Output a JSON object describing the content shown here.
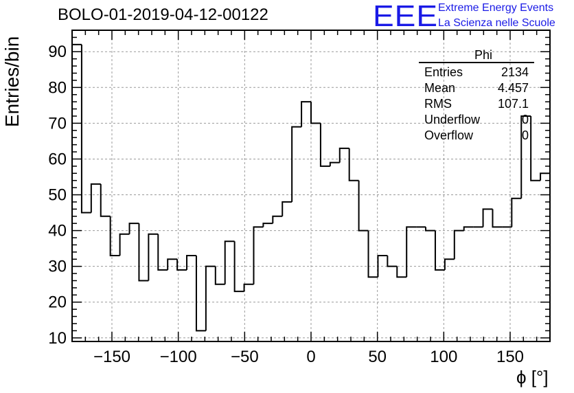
{
  "header": {
    "title": "BOLO-01-2019-04-12-00122",
    "logo_text": "EEE",
    "logo_line1": "Extreme Energy Events",
    "logo_line2": "La Scienza nelle Scuole"
  },
  "stats": {
    "title": "Phi",
    "rows": [
      {
        "label": "Entries",
        "value": "2134"
      },
      {
        "label": "Mean",
        "value": "4.457"
      },
      {
        "label": "RMS",
        "value": "107.1"
      },
      {
        "label": "Underflow",
        "value": "0"
      },
      {
        "label": "Overflow",
        "value": "0"
      }
    ]
  },
  "colors": {
    "logo": "#1a1ae6",
    "line": "#000000",
    "grid": "#999999"
  },
  "chart_data": {
    "type": "histogram",
    "title": "BOLO-01-2019-04-12-00122",
    "xlabel": "ϕ [°]",
    "ylabel": "Entries/bin",
    "xlim": [
      -180,
      180
    ],
    "ylim": [
      9,
      96
    ],
    "xticks": [
      -150,
      -100,
      -50,
      0,
      50,
      100,
      150
    ],
    "xtick_labels": [
      "−150",
      "−100",
      "−50",
      "0",
      "50",
      "100",
      "150"
    ],
    "yticks": [
      10,
      20,
      30,
      40,
      50,
      60,
      70,
      80,
      90
    ],
    "bin_width": 7.2,
    "grid": true,
    "values": [
      92,
      45,
      53,
      44,
      33,
      39,
      42,
      26,
      39,
      29,
      32,
      29,
      33,
      12,
      30,
      25,
      37,
      23,
      25,
      41,
      42,
      44,
      48,
      69,
      76,
      70,
      58,
      59,
      63,
      54,
      40,
      27,
      33,
      30,
      27,
      41,
      41,
      40,
      29,
      32,
      40,
      41,
      41,
      46,
      41,
      41,
      49,
      72,
      54,
      56
    ]
  }
}
